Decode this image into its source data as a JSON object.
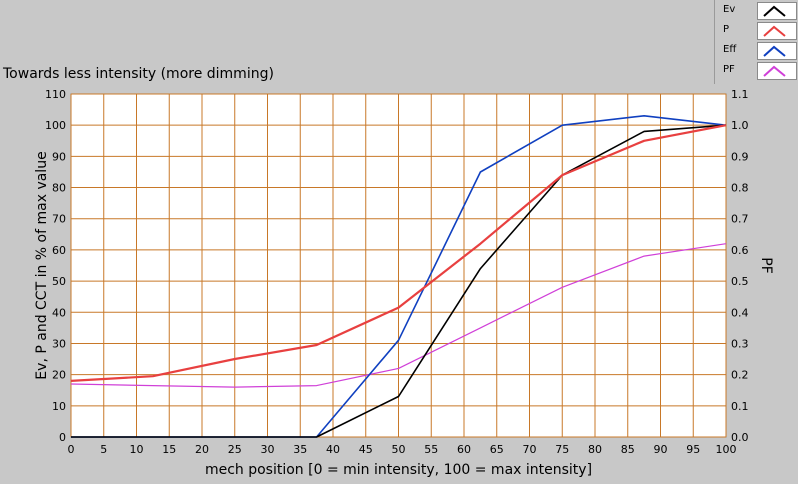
{
  "chart_data": {
    "type": "line",
    "title": "Towards less intensity (more dimming)",
    "xlabel": "mech position [0 = min intensity, 100 = max intensity]",
    "ylabel": "Ev, P and CCT in % of max value",
    "y2label": "PF",
    "xlim": [
      0,
      100
    ],
    "ylim": [
      0,
      110
    ],
    "y2lim": [
      0,
      1.1
    ],
    "x_ticks": [
      "0",
      "5",
      "10",
      "15",
      "20",
      "25",
      "30",
      "35",
      "40",
      "45",
      "50",
      "55",
      "60",
      "65",
      "70",
      "75",
      "80",
      "85",
      "90",
      "95",
      "100"
    ],
    "y_ticks": [
      "0",
      "10",
      "20",
      "30",
      "40",
      "50",
      "60",
      "70",
      "80",
      "90",
      "100",
      "110"
    ],
    "y2_ticks": [
      "0.0",
      "0.1",
      "0.2",
      "0.3",
      "0.4",
      "0.5",
      "0.6",
      "0.7",
      "0.8",
      "0.9",
      "1.0",
      "1.1"
    ],
    "grid": true,
    "plot_background": "#ffffff",
    "grid_color": "#c87828",
    "legend_position": "top-right",
    "series": [
      {
        "name": "Ev",
        "color": "#000000",
        "axis": "left",
        "x": [
          0,
          12.5,
          25,
          37.5,
          50,
          62.5,
          75,
          87.5,
          100
        ],
        "values": [
          0,
          0,
          0,
          0,
          13,
          54,
          84,
          98,
          100
        ]
      },
      {
        "name": "P",
        "color": "#e84040",
        "axis": "left",
        "x": [
          0,
          12.5,
          25,
          37.5,
          50,
          62.5,
          75,
          87.5,
          100
        ],
        "values": [
          18,
          19.5,
          25,
          29.5,
          41.5,
          62,
          84,
          95,
          100
        ]
      },
      {
        "name": "Eff",
        "color": "#1040c0",
        "axis": "left",
        "x": [
          0,
          12.5,
          25,
          37.5,
          50,
          62.5,
          75,
          87.5,
          100
        ],
        "values": [
          0,
          0,
          0,
          0,
          31,
          85,
          100,
          103,
          100
        ]
      },
      {
        "name": "PF",
        "color": "#d040d8",
        "axis": "right",
        "x": [
          0,
          12.5,
          25,
          37.5,
          50,
          62.5,
          75,
          87.5,
          100
        ],
        "values": [
          0.17,
          0.165,
          0.16,
          0.165,
          0.22,
          0.35,
          0.48,
          0.58,
          0.62
        ]
      }
    ]
  }
}
